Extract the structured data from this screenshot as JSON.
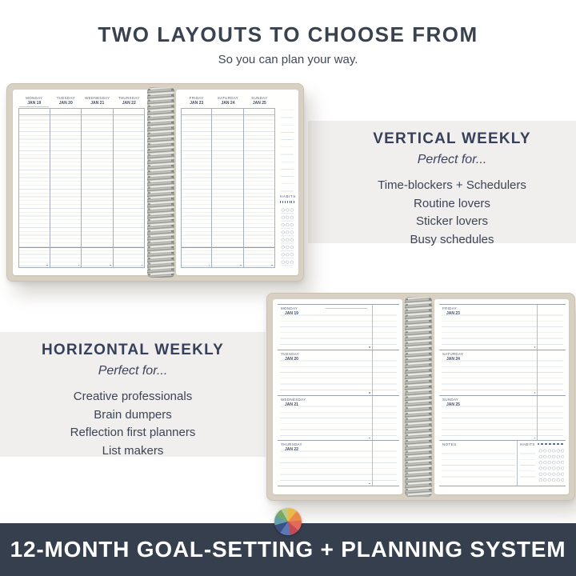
{
  "page": {
    "title": "TWO LAYOUTS TO CHOOSE FROM",
    "subtitle": "So you can plan your way."
  },
  "vertical_section": {
    "heading": "VERTICAL WEEKLY",
    "tagline": "Perfect for...",
    "items": [
      "Time-blockers + Schedulers",
      "Routine lovers",
      "Sticker lovers",
      "Busy schedules"
    ]
  },
  "horizontal_section": {
    "heading": "HORIZONTAL WEEKLY",
    "tagline": "Perfect for...",
    "items": [
      "Creative professionals",
      "Brain dumpers",
      "Reflection first planners",
      "List makers"
    ]
  },
  "vertical_planner": {
    "left_days": [
      {
        "day": "MONDAY",
        "date": "JAN 19"
      },
      {
        "day": "TUESDAY",
        "date": "JAN 20"
      },
      {
        "day": "WEDNESDAY",
        "date": "JAN 21"
      },
      {
        "day": "THURSDAY",
        "date": "JAN 22"
      }
    ],
    "right_days": [
      {
        "day": "FRIDAY",
        "date": "JAN 23"
      },
      {
        "day": "SATURDAY",
        "date": "JAN 24"
      },
      {
        "day": "SUNDAY",
        "date": "JAN 25"
      }
    ],
    "habits_label": "HABITS",
    "habit_dot_count": 7
  },
  "horizontal_planner": {
    "left_days": [
      {
        "day": "MONDAY",
        "date": "JAN 19"
      },
      {
        "day": "TUESDAY",
        "date": "JAN 20"
      },
      {
        "day": "WEDNESDAY",
        "date": "JAN 21"
      },
      {
        "day": "THURSDAY",
        "date": "JAN 22"
      }
    ],
    "right_days": [
      {
        "day": "FRIDAY",
        "date": "JAN 23"
      },
      {
        "day": "SATURDAY",
        "date": "JAN 24"
      },
      {
        "day": "SUNDAY",
        "date": "JAN 25"
      }
    ],
    "notes_label": "NOTES",
    "habits_label": "HABITS",
    "habit_dot_count": 7
  },
  "banner": {
    "text": "12-MONTH GOAL-SETTING + PLANNING SYSTEM"
  },
  "colors": {
    "heading_navy": "#36405a",
    "banner_bg": "#363f4e",
    "band_gray": "#f0efed",
    "cover_beige": "#d8d1c3",
    "page_rule": "#dfe4ea",
    "planner_header_navy": "#3e4a66",
    "habit_dot": "#44597e"
  },
  "wheel_icon": {
    "segments": [
      {
        "color": "#eaba4b",
        "end_deg": 40
      },
      {
        "color": "#ea8a4a",
        "end_deg": 85
      },
      {
        "color": "#e4695a",
        "end_deg": 130
      },
      {
        "color": "#c14b55",
        "end_deg": 170
      },
      {
        "color": "#5b77b5",
        "end_deg": 215
      },
      {
        "color": "#3c4f86",
        "end_deg": 255
      },
      {
        "color": "#63a0a8",
        "end_deg": 295
      },
      {
        "color": "#79a765",
        "end_deg": 330
      },
      {
        "color": "#b9cc8d",
        "end_deg": 360
      }
    ]
  }
}
